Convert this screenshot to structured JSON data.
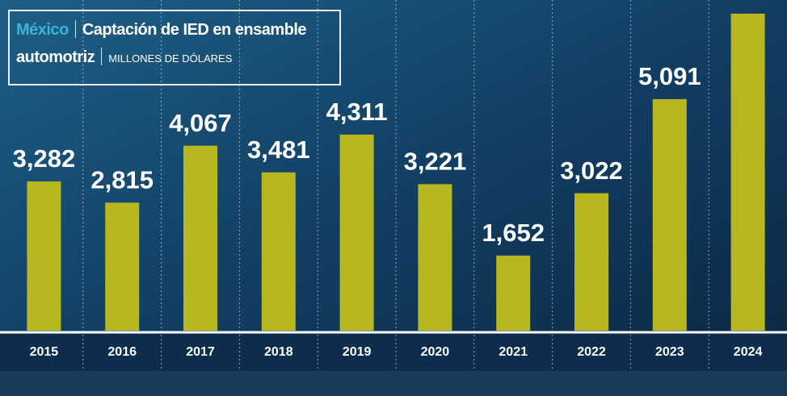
{
  "chart_data": {
    "type": "bar",
    "country": "México",
    "title": "Captación de IED en ensamble automotriz",
    "subtitle": "MILLONES DE DÓLARES",
    "categories": [
      "2015",
      "2016",
      "2017",
      "2018",
      "2019",
      "2020",
      "2021",
      "2022",
      "2023",
      "2024"
    ],
    "values": [
      3282,
      2815,
      4067,
      3481,
      4311,
      3221,
      1652,
      3022,
      5091,
      6970
    ],
    "value_labels": [
      "3,282",
      "2,815",
      "4,067",
      "3,481",
      "4,311",
      "3,221",
      "1,652",
      "3,022",
      "5,091",
      null
    ],
    "color": "#b7b81f",
    "ylim": [
      0,
      7270
    ]
  }
}
